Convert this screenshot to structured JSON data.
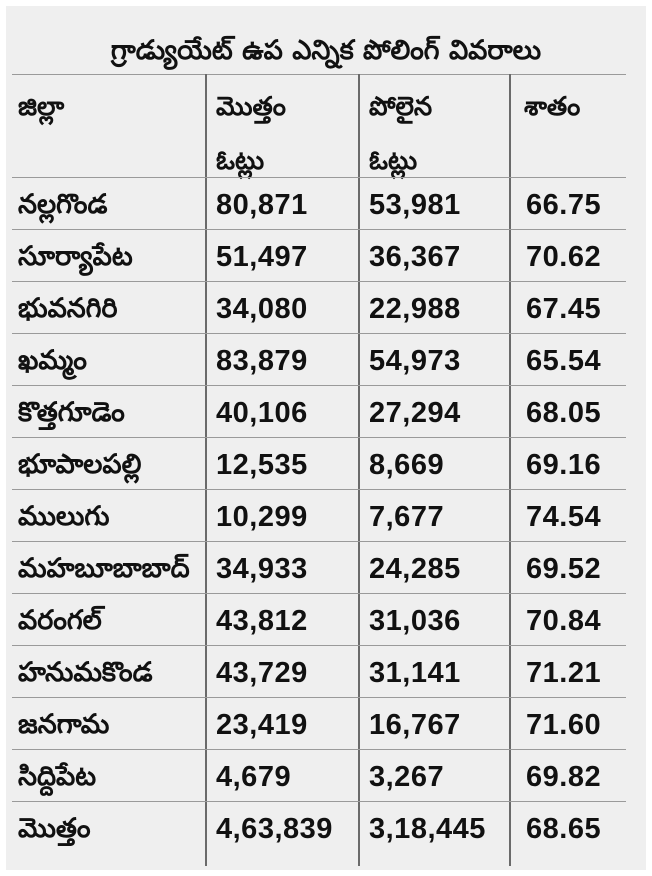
{
  "title": "గ్రాడ్యుయేట్ ఉప ఎన్నిక పోలింగ్ వివరాలు",
  "headers": [
    {
      "line1": "జిల్లా",
      "line2": ""
    },
    {
      "line1": "మొత్తం",
      "line2": "ఓట్లు"
    },
    {
      "line1": "పోలైన",
      "line2": "ఓట్లు"
    },
    {
      "line1": "శాతం",
      "line2": ""
    }
  ],
  "rows": [
    [
      "నల్లగొండ",
      "80,871",
      "53,981",
      "66.75"
    ],
    [
      "సూర్యాపేట",
      "51,497",
      "36,367",
      "70.62"
    ],
    [
      "భువనగిరి",
      "34,080",
      "22,988",
      "67.45"
    ],
    [
      "ఖమ్మం",
      "83,879",
      "54,973",
      "65.54"
    ],
    [
      "కొత్తగూడెం",
      "40,106",
      "27,294",
      "68.05"
    ],
    [
      "భూపాలపల్లి",
      "12,535",
      "8,669",
      "69.16"
    ],
    [
      "ములుగు",
      "10,299",
      "7,677",
      "74.54"
    ],
    [
      "మహబూబాబాద్",
      "34,933",
      "24,285",
      "69.52"
    ],
    [
      "వరంగల్",
      "43,812",
      "31,036",
      "70.84"
    ],
    [
      "హనుమకొండ",
      "43,729",
      "31,141",
      "71.21"
    ],
    [
      "జనగామ",
      "23,419",
      "16,767",
      "71.60"
    ],
    [
      "సిద్దిపేట",
      "4,679",
      "3,267",
      "69.82"
    ],
    [
      "మొత్తం",
      "4,63,839",
      "3,18,445",
      "68.65"
    ]
  ]
}
